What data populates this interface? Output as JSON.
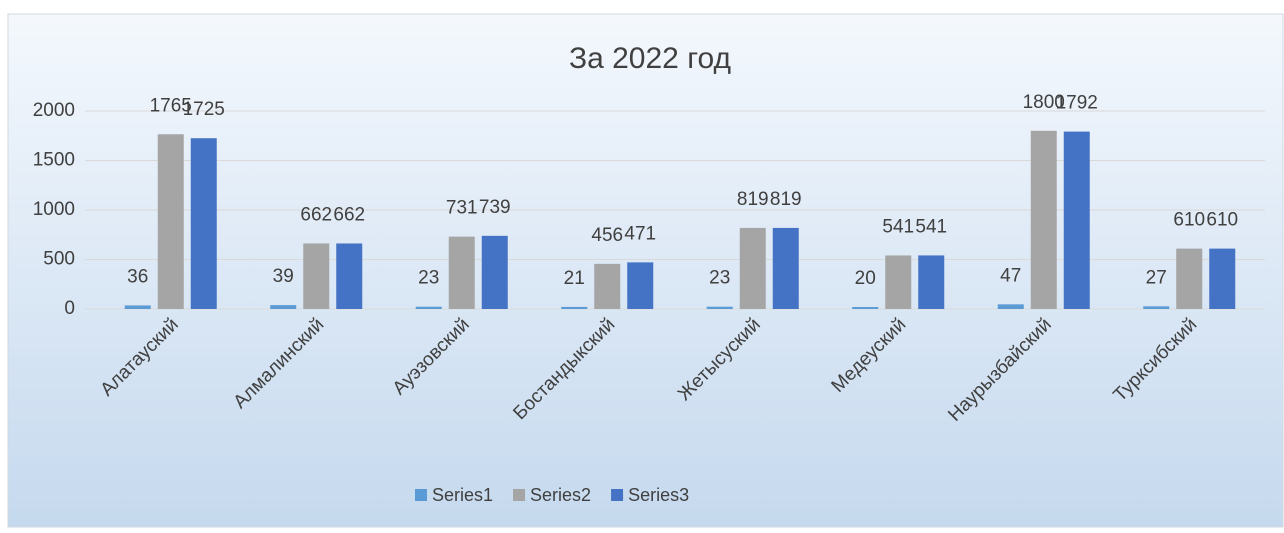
{
  "chart_data": {
    "type": "bar",
    "title": "За 2022 год",
    "categories": [
      "Алатауский",
      "Алмалинский",
      "Ауэзовский",
      "Бостандыкский",
      "Жетысуский",
      "Медеуский",
      "Наурызбайский",
      "Турксибский"
    ],
    "series": [
      {
        "name": "Series1",
        "color": "#5b9bd5",
        "values": [
          36,
          39,
          23,
          21,
          23,
          20,
          47,
          27
        ]
      },
      {
        "name": "Series2",
        "color": "#a5a5a5",
        "values": [
          1765,
          662,
          731,
          456,
          819,
          541,
          1800,
          610
        ]
      },
      {
        "name": "Series3",
        "color": "#4472c4",
        "values": [
          1725,
          662,
          739,
          471,
          819,
          541,
          1792,
          610
        ]
      }
    ],
    "ylim": [
      0,
      2000
    ],
    "yticks": [
      0,
      500,
      1000,
      1500,
      2000
    ],
    "grid": true,
    "legend": "bottom"
  }
}
